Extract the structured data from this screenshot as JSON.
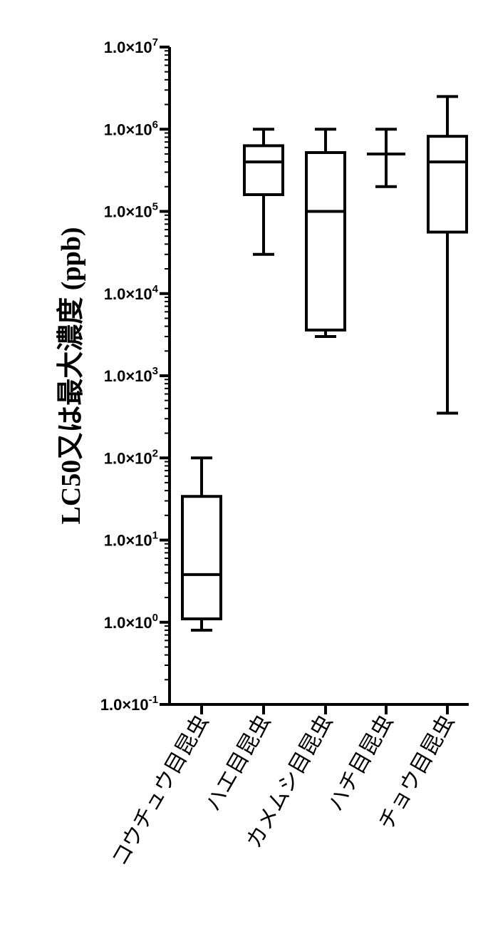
{
  "chart_data": {
    "type": "box",
    "ylabel": "LC50又は最大濃度 (ppb)",
    "yscale": "log",
    "ylim": [
      0.1,
      10000000
    ],
    "y_ticks": [
      {
        "value": 10000000,
        "base": "1.0×10",
        "exp": "7"
      },
      {
        "value": 1000000,
        "base": "1.0×10",
        "exp": "6"
      },
      {
        "value": 100000,
        "base": "1.0×10",
        "exp": "5"
      },
      {
        "value": 10000,
        "base": "1.0×10",
        "exp": "4"
      },
      {
        "value": 1000,
        "base": "1.0×10",
        "exp": "3"
      },
      {
        "value": 100,
        "base": "1.0×10",
        "exp": "2"
      },
      {
        "value": 10,
        "base": "1.0×10",
        "exp": "1"
      },
      {
        "value": 1,
        "base": "1.0×10",
        "exp": "0"
      },
      {
        "value": 0.1,
        "base": "1.0×10",
        "exp": "-1"
      }
    ],
    "categories": [
      "コウチュウ目昆虫",
      "ハエ目昆虫",
      "カメムシ目昆虫",
      "ハチ目昆虫",
      "チョウ目昆虫"
    ],
    "boxes": [
      {
        "min": 0.8,
        "q1": 1.1,
        "median": 3.8,
        "q3": 34,
        "max": 100
      },
      {
        "min": 30000,
        "q1": 160000,
        "median": 400000,
        "q3": 630000,
        "max": 1000000
      },
      {
        "min": 3000,
        "q1": 3600,
        "median": 100000,
        "q3": 520000,
        "max": 1000000
      },
      {
        "min": 200000,
        "q1": 500000,
        "median": 500000,
        "q3": 500000,
        "max": 1000000
      },
      {
        "min": 350,
        "q1": 56000,
        "median": 400000,
        "q3": 820000,
        "max": 2500000
      }
    ]
  }
}
